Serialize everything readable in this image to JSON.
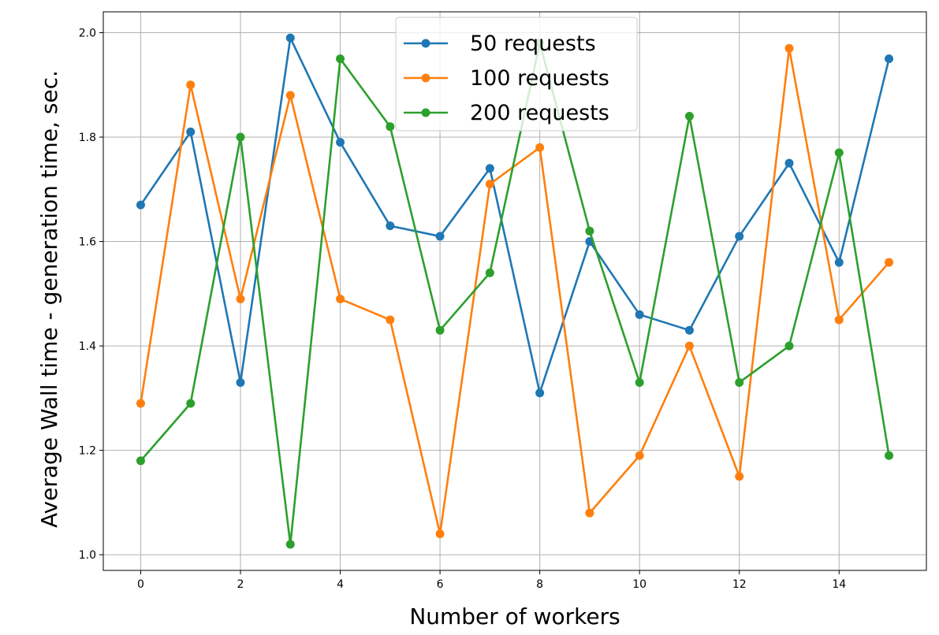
{
  "chart_data": {
    "type": "line",
    "title": "",
    "xlabel": "Number of workers",
    "ylabel": "Average Wall time - generation time, sec.",
    "x": [
      0,
      1,
      2,
      3,
      4,
      5,
      6,
      7,
      8,
      9,
      10,
      11,
      12,
      13,
      14,
      15
    ],
    "xlim": [
      -0.75,
      15.75
    ],
    "ylim": [
      0.97,
      2.04
    ],
    "xticks": [
      0,
      2,
      4,
      6,
      8,
      10,
      12,
      14
    ],
    "yticks": [
      1.0,
      1.2,
      1.4,
      1.6,
      1.8,
      2.0
    ],
    "xtick_labels": [
      "0",
      "2",
      "4",
      "6",
      "8",
      "10",
      "12",
      "14"
    ],
    "ytick_labels": [
      "1.0",
      "1.2",
      "1.4",
      "1.6",
      "1.8",
      "2.0"
    ],
    "grid": true,
    "legend_position": "top-center",
    "series": [
      {
        "name": "50 requests",
        "color": "#1f77b4",
        "values": [
          1.67,
          1.81,
          1.33,
          1.99,
          1.79,
          1.63,
          1.61,
          1.74,
          1.31,
          1.6,
          1.46,
          1.43,
          1.61,
          1.75,
          1.56,
          1.95
        ]
      },
      {
        "name": "100 requests",
        "color": "#ff7f0e",
        "values": [
          1.29,
          1.9,
          1.49,
          1.88,
          1.49,
          1.45,
          1.04,
          1.71,
          1.78,
          1.08,
          1.19,
          1.4,
          1.15,
          1.97,
          1.45,
          1.56
        ]
      },
      {
        "name": "200 requests",
        "color": "#2ca02c",
        "values": [
          1.18,
          1.29,
          1.8,
          1.02,
          1.95,
          1.82,
          1.43,
          1.54,
          1.98,
          1.62,
          1.33,
          1.84,
          1.33,
          1.4,
          1.77,
          1.19
        ]
      }
    ]
  }
}
